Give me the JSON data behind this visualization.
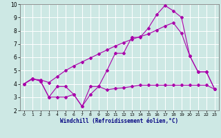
{
  "xlabel": "Windchill (Refroidissement éolien,°C)",
  "bg_color": "#cde8e4",
  "grid_color": "#ffffff",
  "line_color": "#aa00aa",
  "xlim": [
    -0.5,
    23.5
  ],
  "ylim": [
    2,
    10
  ],
  "xticks": [
    0,
    1,
    2,
    3,
    4,
    5,
    6,
    7,
    8,
    9,
    10,
    11,
    12,
    13,
    14,
    15,
    16,
    17,
    18,
    19,
    20,
    21,
    22,
    23
  ],
  "yticks": [
    2,
    3,
    4,
    5,
    6,
    7,
    8,
    9,
    10
  ],
  "line1_x": [
    0,
    1,
    2,
    3,
    4,
    5,
    6,
    7,
    8,
    9,
    10,
    11,
    12,
    13,
    14,
    15,
    16,
    17,
    18,
    19,
    20,
    21,
    22,
    23
  ],
  "line1_y": [
    4.0,
    4.4,
    4.2,
    3.0,
    3.8,
    3.8,
    3.2,
    2.3,
    3.2,
    3.8,
    3.55,
    3.65,
    3.7,
    3.8,
    3.9,
    3.9,
    3.9,
    3.9,
    3.9,
    3.9,
    3.9,
    3.9,
    3.9,
    3.6
  ],
  "line2_x": [
    0,
    1,
    2,
    3,
    4,
    5,
    6,
    7,
    8,
    9,
    10,
    11,
    12,
    13,
    14,
    15,
    16,
    17,
    18,
    19,
    20,
    21,
    22,
    23
  ],
  "line2_y": [
    4.0,
    4.4,
    4.2,
    3.0,
    3.0,
    3.0,
    3.2,
    2.3,
    3.8,
    3.8,
    5.0,
    6.3,
    6.3,
    7.5,
    7.5,
    8.2,
    9.2,
    9.9,
    9.5,
    9.0,
    6.1,
    4.9,
    4.9,
    3.6
  ],
  "line3_x": [
    0,
    1,
    2,
    3,
    4,
    5,
    6,
    7,
    8,
    9,
    10,
    11,
    12,
    13,
    14,
    15,
    16,
    17,
    18,
    19,
    20,
    21,
    22,
    23
  ],
  "line3_y": [
    4.0,
    4.35,
    4.3,
    4.1,
    4.55,
    5.0,
    5.35,
    5.65,
    5.95,
    6.25,
    6.55,
    6.85,
    7.1,
    7.35,
    7.55,
    7.75,
    8.05,
    8.35,
    8.6,
    7.8,
    6.1,
    4.9,
    4.9,
    3.6
  ]
}
